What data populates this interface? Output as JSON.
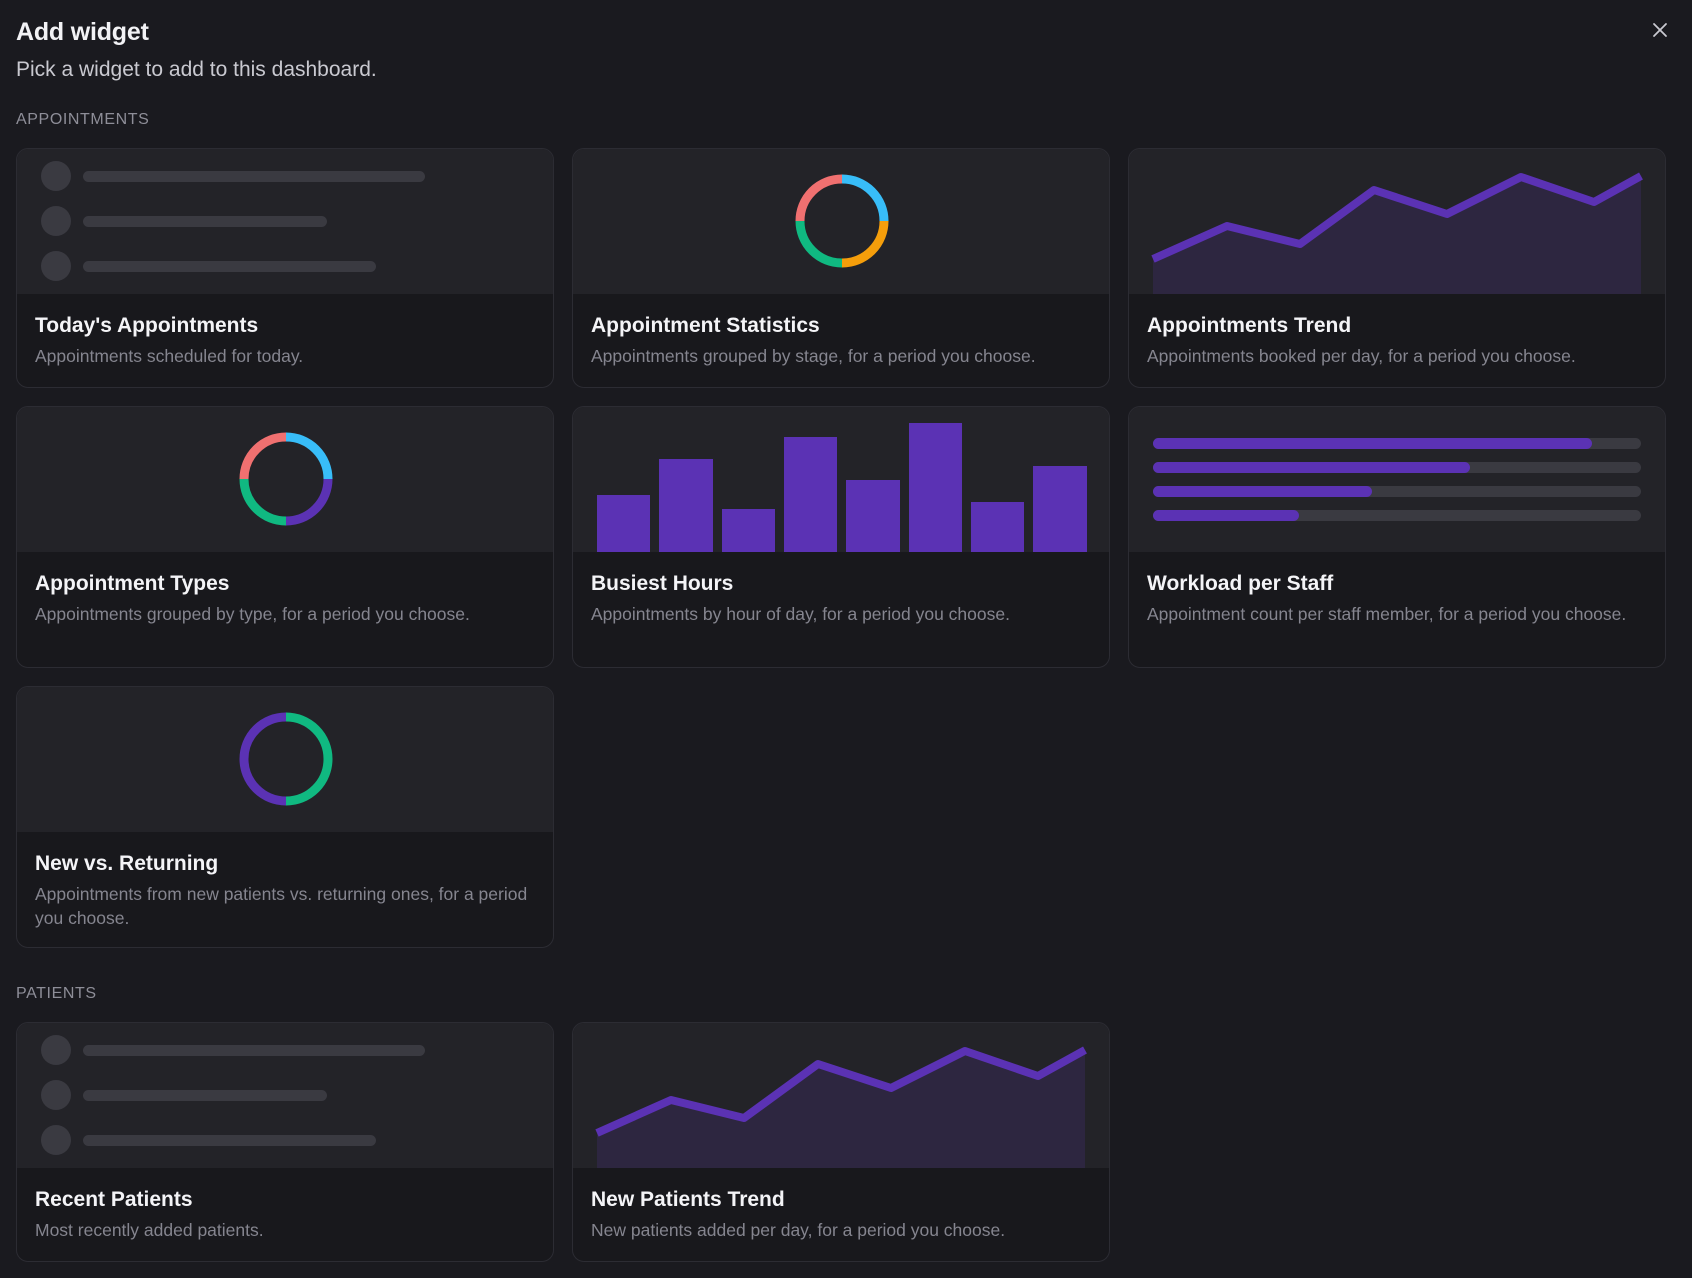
{
  "dialog": {
    "title": "Add widget",
    "subtitle": "Pick a widget to add to this dashboard.",
    "close_icon": "close-icon"
  },
  "colors": {
    "background": "#1a1a1f",
    "card": "#18181c",
    "preview": "#232328",
    "accent": "#5b32b4",
    "skeleton": "#3a3a41",
    "donut_red": "#f07070",
    "donut_blue": "#38bdf8",
    "donut_orange": "#f59e0b",
    "donut_green": "#10b981"
  },
  "sections": [
    {
      "label": "APPOINTMENTS",
      "widgets": [
        {
          "title": "Today's Appointments",
          "description": "Appointments scheduled for today.",
          "preview": "list"
        },
        {
          "title": "Appointment Statistics",
          "description": "Appointments grouped by stage, for a period you choose.",
          "preview": "donut-four"
        },
        {
          "title": "Appointments Trend",
          "description": "Appointments booked per day, for a period you choose.",
          "preview": "area-line"
        },
        {
          "title": "Appointment Types",
          "description": "Appointments grouped by type, for a period you choose.",
          "preview": "donut-types"
        },
        {
          "title": "Busiest Hours",
          "description": "Appointments by hour of day, for a period you choose.",
          "preview": "bars"
        },
        {
          "title": "Workload per Staff",
          "description": "Appointment count per staff member, for a period you choose.",
          "preview": "hbars"
        },
        {
          "title": "New vs. Returning",
          "description": "Appointments from new patients vs. returning ones, for a period you choose.",
          "preview": "donut-two"
        }
      ]
    },
    {
      "label": "PATIENTS",
      "widgets": [
        {
          "title": "Recent Patients",
          "description": "Most recently added patients.",
          "preview": "list"
        },
        {
          "title": "New Patients Trend",
          "description": "New patients added per day, for a period you choose.",
          "preview": "area-line"
        }
      ]
    }
  ]
}
